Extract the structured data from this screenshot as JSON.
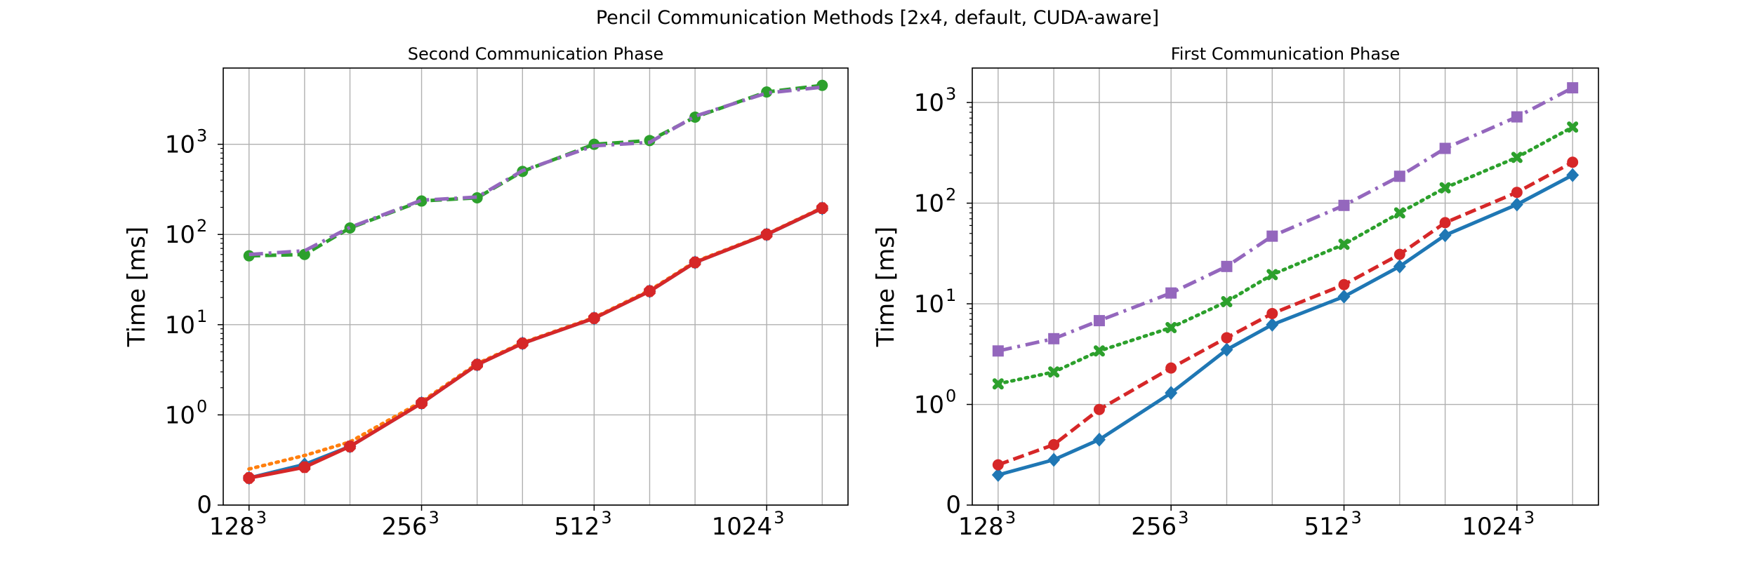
{
  "figure": {
    "title": "Pencil Communication Methods [2x4, default, CUDA-aware]"
  },
  "chart_data": [
    {
      "type": "line",
      "title": "Second Communication Phase",
      "xlabel": "",
      "ylabel": "Time [ms]",
      "yscale": "symlog",
      "ylim": [
        0,
        7000
      ],
      "grid": true,
      "x": [
        128,
        160,
        192,
        256,
        320,
        384,
        512,
        640,
        768,
        1024,
        1280
      ],
      "xticks": [
        128,
        256,
        512,
        1024
      ],
      "xticklabels": [
        "128",
        "256",
        "512",
        "1024"
      ],
      "xtick_exponent": "3",
      "yticks": [
        0,
        1,
        10,
        100,
        1000
      ],
      "ytick_exponents": [
        "",
        "0",
        "1",
        "2",
        "3"
      ],
      "series": [
        {
          "values": [
            0.3,
            0.45,
            0.65,
            1.35,
            3.6,
            6.2,
            11.8,
            23.5,
            49,
            100,
            195
          ],
          "color": "#1f77b4",
          "linestyle": "solid",
          "marker": "diamond"
        },
        {
          "values": [
            0.4,
            0.55,
            0.7,
            1.4,
            3.7,
            6.3,
            12.0,
            24.0,
            50,
            101,
            198
          ],
          "color": "#ff7f0e",
          "linestyle": "dotted",
          "marker": "none"
        },
        {
          "values": [
            58,
            60,
            118,
            235,
            255,
            500,
            1000,
            1100,
            2000,
            3800,
            4500
          ],
          "color": "#2ca02c",
          "linestyle": "dashed",
          "marker": "circle"
        },
        {
          "values": [
            0.3,
            0.42,
            0.65,
            1.35,
            3.6,
            6.2,
            11.8,
            23.5,
            49,
            100,
            196
          ],
          "color": "#d62728",
          "linestyle": "solid",
          "marker": "octagon"
        },
        {
          "values": [
            60,
            66,
            120,
            240,
            260,
            510,
            960,
            1050,
            2050,
            3700,
            4300
          ],
          "color": "#9467bd",
          "linestyle": "dashdot",
          "marker": "none"
        }
      ]
    },
    {
      "type": "line",
      "title": "First Communication Phase",
      "xlabel": "",
      "ylabel": "Time [ms]",
      "yscale": "symlog",
      "ylim": [
        0,
        2200
      ],
      "grid": true,
      "x": [
        128,
        160,
        192,
        256,
        320,
        384,
        512,
        640,
        768,
        1024,
        1280
      ],
      "xticks": [
        128,
        256,
        512,
        1024
      ],
      "xticklabels": [
        "128",
        "256",
        "512",
        "1024"
      ],
      "xtick_exponent": "3",
      "yticks": [
        0,
        1,
        10,
        100,
        1000
      ],
      "ytick_exponents": [
        "",
        "0",
        "1",
        "2",
        "3"
      ],
      "series": [
        {
          "values": [
            0.3,
            0.45,
            0.65,
            1.3,
            3.5,
            6.2,
            11.8,
            23.5,
            48,
            97,
            190
          ],
          "color": "#1f77b4",
          "linestyle": "solid",
          "marker": "diamond"
        },
        {
          "values": [
            0.4,
            0.6,
            0.95,
            2.3,
            4.6,
            8.0,
            15.5,
            31,
            64,
            128,
            255
          ],
          "color": "#d62728",
          "linestyle": "dashed",
          "marker": "circle"
        },
        {
          "values": [
            1.6,
            2.1,
            3.4,
            5.8,
            10.5,
            19.5,
            39,
            80,
            142,
            285,
            570
          ],
          "color": "#2ca02c",
          "linestyle": "dotted",
          "marker": "x"
        },
        {
          "values": [
            3.4,
            4.5,
            6.8,
            12.8,
            23.5,
            47,
            95,
            185,
            350,
            720,
            1400
          ],
          "color": "#9467bd",
          "linestyle": "dashdot",
          "marker": "square"
        }
      ]
    }
  ]
}
